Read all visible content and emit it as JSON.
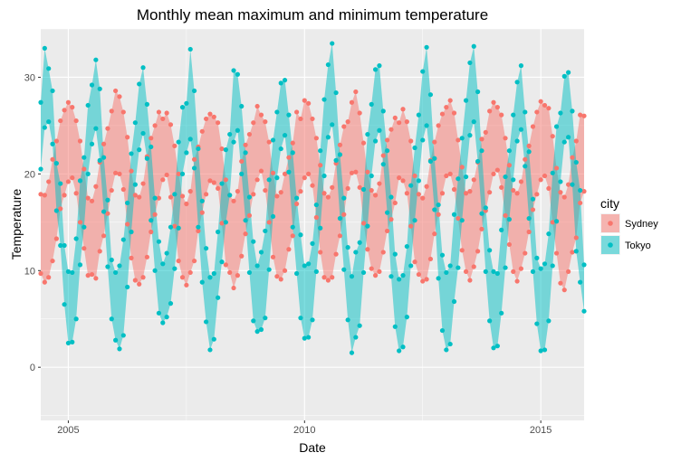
{
  "chart_data": {
    "type": "area",
    "title": "Monthly mean maximum and minimum temperature",
    "xlabel": "Date",
    "ylabel": "Temperature",
    "x_ticks": [
      "2005",
      "2010",
      "2015"
    ],
    "y_ticks": [
      0,
      10,
      20,
      30
    ],
    "xlim": [
      "2004-06",
      "2015-12"
    ],
    "ylim": [
      -5.5,
      35
    ],
    "grid": true,
    "legend": {
      "title": "city",
      "position": "right"
    },
    "series": [
      {
        "name": "Sydney",
        "color": "#F8766D",
        "x": [
          "2004-06",
          "2004-07",
          "2004-08",
          "2004-09",
          "2004-10",
          "2004-11",
          "2004-12",
          "2005-01",
          "2005-02",
          "2005-03",
          "2005-04",
          "2005-05",
          "2005-06",
          "2005-07",
          "2005-08",
          "2005-09",
          "2005-10",
          "2005-11",
          "2005-12",
          "2006-01",
          "2006-02",
          "2006-03",
          "2006-04",
          "2006-05",
          "2006-06",
          "2006-07",
          "2006-08",
          "2006-09",
          "2006-10",
          "2006-11",
          "2006-12",
          "2007-01",
          "2007-02",
          "2007-03",
          "2007-04",
          "2007-05",
          "2007-06",
          "2007-07",
          "2007-08",
          "2007-09",
          "2007-10",
          "2007-11",
          "2007-12",
          "2008-01",
          "2008-02",
          "2008-03",
          "2008-04",
          "2008-05",
          "2008-06",
          "2008-07",
          "2008-08",
          "2008-09",
          "2008-10",
          "2008-11",
          "2008-12",
          "2009-01",
          "2009-02",
          "2009-03",
          "2009-04",
          "2009-05",
          "2009-06",
          "2009-07",
          "2009-08",
          "2009-09",
          "2009-10",
          "2009-11",
          "2009-12",
          "2010-01",
          "2010-02",
          "2010-03",
          "2010-04",
          "2010-05",
          "2010-06",
          "2010-07",
          "2010-08",
          "2010-09",
          "2010-10",
          "2010-11",
          "2010-12",
          "2011-01",
          "2011-02",
          "2011-03",
          "2011-04",
          "2011-05",
          "2011-06",
          "2011-07",
          "2011-08",
          "2011-09",
          "2011-10",
          "2011-11",
          "2011-12",
          "2012-01",
          "2012-02",
          "2012-03",
          "2012-04",
          "2012-05",
          "2012-06",
          "2012-07",
          "2012-08",
          "2012-09",
          "2012-10",
          "2012-11",
          "2012-12",
          "2013-01",
          "2013-02",
          "2013-03",
          "2013-04",
          "2013-05",
          "2013-06",
          "2013-07",
          "2013-08",
          "2013-09",
          "2013-10",
          "2013-11",
          "2013-12",
          "2014-01",
          "2014-02",
          "2014-03",
          "2014-04",
          "2014-05",
          "2014-06",
          "2014-07",
          "2014-08",
          "2014-09",
          "2014-10",
          "2014-11",
          "2014-12",
          "2015-01",
          "2015-02",
          "2015-03",
          "2015-04",
          "2015-05",
          "2015-06",
          "2015-07",
          "2015-08",
          "2015-09",
          "2015-10",
          "2015-11",
          "2015-12"
        ],
        "max": [
          17.9,
          17.8,
          19.2,
          21.5,
          23.4,
          25.5,
          26.6,
          27.4,
          26.9,
          25.5,
          23.4,
          20.5,
          17.5,
          17.2,
          18.7,
          21.2,
          23.1,
          24.7,
          26.5,
          28.6,
          28.0,
          26.4,
          23.8,
          20.3,
          17.8,
          17.6,
          19.0,
          21.8,
          23.7,
          25.0,
          26.4,
          25.7,
          26.3,
          25.1,
          22.9,
          20.0,
          17.7,
          16.9,
          18.2,
          21.5,
          22.8,
          24.4,
          25.7,
          26.2,
          25.9,
          25.3,
          22.6,
          19.4,
          17.8,
          17.2,
          18.2,
          21.3,
          23.0,
          24.1,
          25.3,
          27.0,
          26.1,
          25.4,
          23.3,
          20.1,
          17.7,
          18.1,
          20.0,
          21.7,
          23.2,
          26.4,
          25.7,
          27.6,
          27.3,
          25.7,
          23.7,
          20.9,
          18.0,
          17.6,
          18.6,
          21.1,
          23.0,
          24.9,
          25.4,
          27.4,
          28.5,
          26.3,
          23.2,
          20.2,
          18.3,
          17.8,
          19.0,
          21.9,
          23.5,
          24.6,
          25.8,
          25.3,
          26.7,
          25.4,
          23.4,
          19.8,
          17.9,
          17.5,
          18.7,
          21.4,
          23.3,
          25.0,
          26.2,
          26.9,
          27.6,
          26.3,
          23.5,
          20.7,
          18.0,
          18.2,
          19.4,
          21.2,
          23.6,
          24.3,
          26.5,
          27.4,
          26.9,
          26.1,
          23.7,
          20.9,
          18.3,
          18.0,
          19.2,
          21.5,
          22.9,
          24.9,
          26.4,
          27.5,
          27.1,
          26.8,
          23.9,
          20.6,
          18.1,
          17.6,
          18.9,
          21.7,
          23.4,
          26.1,
          26.0
        ],
        "min": [
          9.7,
          8.8,
          9.3,
          11.0,
          13.3,
          16.4,
          17.8,
          19.2,
          19.6,
          18.0,
          15.0,
          12.3,
          9.5,
          9.6,
          9.2,
          12.0,
          13.6,
          15.9,
          18.3,
          20.1,
          20.0,
          18.4,
          14.8,
          11.3,
          9.0,
          8.6,
          9.3,
          11.4,
          14.0,
          15.8,
          17.5,
          19.4,
          19.9,
          17.6,
          14.6,
          11.0,
          9.3,
          8.5,
          9.8,
          11.0,
          14.1,
          16.0,
          17.9,
          19.3,
          19.1,
          18.5,
          14.9,
          10.6,
          9.8,
          8.2,
          9.5,
          11.5,
          13.8,
          15.7,
          17.9,
          19.4,
          20.3,
          18.3,
          15.0,
          11.4,
          9.4,
          9.1,
          10.0,
          12.2,
          13.6,
          16.9,
          18.2,
          19.6,
          20.0,
          18.8,
          15.5,
          11.9,
          9.3,
          9.0,
          9.3,
          11.7,
          13.6,
          15.8,
          18.5,
          20.1,
          20.2,
          18.6,
          14.9,
          12.2,
          10.2,
          9.5,
          9.9,
          11.9,
          14.1,
          15.3,
          17.0,
          19.6,
          19.3,
          18.0,
          14.6,
          10.9,
          9.6,
          8.9,
          9.1,
          11.2,
          13.8,
          15.8,
          18.0,
          19.8,
          20.0,
          18.4,
          15.4,
          12.1,
          9.9,
          9.0,
          10.4,
          12.0,
          14.3,
          16.2,
          18.1,
          20.0,
          20.4,
          18.6,
          15.7,
          12.7,
          9.9,
          8.9,
          10.2,
          11.8,
          14.0,
          16.3,
          17.9,
          19.4,
          19.8,
          18.5,
          15.0,
          11.8,
          8.7,
          8.0,
          9.9,
          11.9,
          13.4,
          17.0,
          18.2
        ]
      },
      {
        "name": "Tokyo",
        "color": "#00BFC4",
        "x": [
          "2004-06",
          "2004-07",
          "2004-08",
          "2004-09",
          "2004-10",
          "2004-11",
          "2004-12",
          "2005-01",
          "2005-02",
          "2005-03",
          "2005-04",
          "2005-05",
          "2005-06",
          "2005-07",
          "2005-08",
          "2005-09",
          "2005-10",
          "2005-11",
          "2005-12",
          "2006-01",
          "2006-02",
          "2006-03",
          "2006-04",
          "2006-05",
          "2006-06",
          "2006-07",
          "2006-08",
          "2006-09",
          "2006-10",
          "2006-11",
          "2006-12",
          "2007-01",
          "2007-02",
          "2007-03",
          "2007-04",
          "2007-05",
          "2007-06",
          "2007-07",
          "2007-08",
          "2007-09",
          "2007-10",
          "2007-11",
          "2007-12",
          "2008-01",
          "2008-02",
          "2008-03",
          "2008-04",
          "2008-05",
          "2008-06",
          "2008-07",
          "2008-08",
          "2008-09",
          "2008-10",
          "2008-11",
          "2008-12",
          "2009-01",
          "2009-02",
          "2009-03",
          "2009-04",
          "2009-05",
          "2009-06",
          "2009-07",
          "2009-08",
          "2009-09",
          "2009-10",
          "2009-11",
          "2009-12",
          "2010-01",
          "2010-02",
          "2010-03",
          "2010-04",
          "2010-05",
          "2010-06",
          "2010-07",
          "2010-08",
          "2010-09",
          "2010-10",
          "2010-11",
          "2010-12",
          "2011-01",
          "2011-02",
          "2011-03",
          "2011-04",
          "2011-05",
          "2011-06",
          "2011-07",
          "2011-08",
          "2011-09",
          "2011-10",
          "2011-11",
          "2011-12",
          "2012-01",
          "2012-02",
          "2012-03",
          "2012-04",
          "2012-05",
          "2012-06",
          "2012-07",
          "2012-08",
          "2012-09",
          "2012-10",
          "2012-11",
          "2012-12",
          "2013-01",
          "2013-02",
          "2013-03",
          "2013-04",
          "2013-05",
          "2013-06",
          "2013-07",
          "2013-08",
          "2013-09",
          "2013-10",
          "2013-11",
          "2013-12",
          "2014-01",
          "2014-02",
          "2014-03",
          "2014-04",
          "2014-05",
          "2014-06",
          "2014-07",
          "2014-08",
          "2014-09",
          "2014-10",
          "2014-11",
          "2014-12",
          "2015-01",
          "2015-02",
          "2015-03",
          "2015-04",
          "2015-05",
          "2015-06",
          "2015-07",
          "2015-08",
          "2015-09",
          "2015-10",
          "2015-11",
          "2015-12"
        ],
        "max": [
          27.4,
          33.0,
          30.9,
          28.6,
          21.1,
          19.0,
          12.6,
          9.9,
          9.8,
          13.3,
          19.3,
          21.7,
          27.1,
          29.2,
          31.8,
          28.8,
          21.7,
          17.3,
          11.1,
          9.8,
          10.5,
          13.2,
          17.0,
          22.1,
          25.3,
          29.3,
          31.0,
          27.2,
          22.8,
          17.5,
          13.0,
          10.7,
          11.8,
          14.5,
          17.9,
          23.3,
          26.9,
          27.3,
          32.9,
          28.6,
          22.6,
          17.2,
          12.3,
          9.3,
          9.7,
          14.0,
          19.0,
          22.5,
          24.1,
          30.7,
          30.3,
          27.0,
          22.2,
          17.6,
          13.0,
          10.5,
          11.9,
          14.1,
          19.4,
          23.5,
          26.4,
          29.4,
          29.7,
          26.1,
          22.2,
          17.5,
          13.7,
          10.5,
          10.7,
          12.8,
          16.8,
          22.4,
          27.7,
          31.3,
          33.5,
          28.4,
          22.0,
          17.5,
          12.4,
          9.4,
          11.9,
          12.9,
          18.4,
          24.1,
          27.2,
          30.8,
          31.2,
          26.5,
          22.4,
          17.6,
          11.7,
          9.1,
          9.5,
          12.5,
          18.8,
          22.7,
          26.1,
          30.6,
          33.1,
          28.2,
          21.6,
          16.8,
          11.6,
          9.8,
          10.5,
          15.8,
          19.5,
          23.7,
          27.6,
          31.5,
          33.2,
          28.5,
          22.4,
          16.5,
          12.1,
          9.9,
          9.7,
          14.2,
          19.7,
          22.4,
          26.1,
          29.5,
          31.2,
          26.4,
          22.3,
          17.4,
          11.3,
          10.2,
          10.7,
          13.8,
          20.1,
          24.9,
          26.3,
          30.1,
          30.5,
          26.5,
          21.2,
          18.3,
          10.6
        ],
        "min": [
          20.5,
          24.8,
          25.4,
          23.1,
          16.2,
          12.6,
          6.5,
          2.5,
          2.6,
          5.0,
          10.6,
          14.5,
          20.0,
          23.1,
          24.7,
          21.4,
          16.1,
          10.4,
          5.0,
          2.8,
          1.9,
          3.3,
          8.3,
          14.0,
          18.9,
          22.5,
          24.2,
          21.6,
          15.2,
          10.0,
          5.6,
          4.6,
          5.2,
          6.6,
          10.2,
          14.4,
          20.0,
          22.2,
          23.6,
          20.6,
          14.5,
          8.8,
          4.7,
          1.8,
          2.9,
          7.2,
          10.9,
          15.0,
          17.8,
          23.3,
          24.5,
          20.0,
          15.2,
          9.8,
          4.8,
          3.7,
          3.9,
          5.1,
          10.1,
          15.6,
          19.6,
          22.6,
          24.0,
          20.2,
          14.5,
          9.7,
          5.1,
          3.0,
          3.1,
          4.9,
          9.9,
          14.4,
          19.8,
          23.8,
          25.1,
          21.4,
          15.4,
          10.1,
          4.9,
          1.5,
          3.1,
          4.3,
          9.8,
          14.6,
          19.8,
          23.4,
          24.5,
          21.0,
          16.0,
          9.4,
          4.2,
          1.7,
          2.1,
          5.2,
          10.5,
          15.2,
          19.3,
          23.5,
          25.0,
          21.3,
          16.3,
          9.2,
          3.8,
          1.8,
          2.4,
          6.8,
          10.3,
          15.2,
          19.7,
          24.0,
          25.4,
          21.3,
          15.9,
          9.9,
          4.8,
          2.0,
          2.2,
          5.6,
          10.3,
          15.3,
          19.4,
          23.4,
          24.6,
          20.8,
          15.4,
          9.9,
          4.5,
          1.7,
          1.8,
          4.8,
          10.5,
          15.1,
          19.2,
          23.3,
          23.8,
          18.9,
          12.0,
          8.8,
          5.8
        ]
      }
    ]
  }
}
